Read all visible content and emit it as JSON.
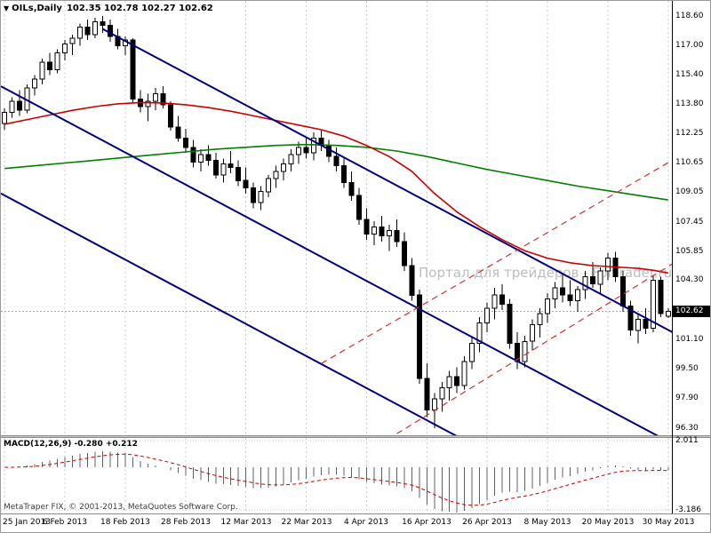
{
  "header": {
    "shift_marker": "▼",
    "symbol": "OILs,Daily",
    "ohlc": "102.35 102.78 102.27 102.62"
  },
  "watermark": "Портал для трейдеров - ForTrader.ru",
  "price_scale": {
    "current_price_label": "102.62"
  },
  "macd_panel": {
    "label": "MACD(12,26,9) -0.280 +0.212",
    "max_label": "2.011",
    "min_label": "-3.186"
  },
  "footer": "MetaTraper FIX, © 2001-2013, MetaQuotes Software Corp.",
  "colors": {
    "bull": "#ffffff",
    "bear": "#000000",
    "wick": "#000000",
    "ma_fast": "#cc0000",
    "ma_slow": "#008000",
    "trendline": "#000080",
    "channel_dashed": "#cc3333",
    "grid": "#cccccc",
    "price_line": "#aaaaaa",
    "price_box_bg": "#000000",
    "macd_histogram": "#606060",
    "macd_signal": "#cc0000"
  },
  "chart_data": {
    "type": "candlestick",
    "symbol": "OILs",
    "timeframe": "Daily",
    "title": "OILs,Daily",
    "ylim": [
      95.87,
      119.42
    ],
    "grid": "vertical-dashed",
    "last": {
      "open": 102.35,
      "high": 102.78,
      "low": 102.27,
      "close": 102.62
    },
    "price_ticks": [
      [
        "118.60",
        118.6
      ],
      [
        "117.00",
        117.0
      ],
      [
        "115.40",
        115.4
      ],
      [
        "113.80",
        113.8
      ],
      [
        "112.25",
        112.25
      ],
      [
        "110.65",
        110.65
      ],
      [
        "109.05",
        109.05
      ],
      [
        "107.45",
        107.45
      ],
      [
        "105.85",
        105.85
      ],
      [
        "104.30",
        104.3
      ],
      [
        "101.10",
        101.1
      ],
      [
        "99.50",
        99.5
      ],
      [
        "97.90",
        97.9
      ],
      [
        "96.30",
        96.3
      ]
    ],
    "x_ticks": [
      [
        "25 Jan 2013",
        0
      ],
      [
        "6 Feb 2013",
        8
      ],
      [
        "18 Feb 2013",
        16
      ],
      [
        "28 Feb 2013",
        24
      ],
      [
        "12 Mar 2013",
        32
      ],
      [
        "22 Mar 2013",
        40
      ],
      [
        "4 Apr 2013",
        48
      ],
      [
        "16 Apr 2013",
        56
      ],
      [
        "26 Apr 2013",
        64
      ],
      [
        "8 May 2013",
        72
      ],
      [
        "20 May 2013",
        80
      ],
      [
        "30 May 2013",
        88
      ]
    ],
    "candles": [
      [
        112.8,
        113.6,
        112.45,
        113.4
      ],
      [
        113.4,
        114.2,
        113.1,
        114.0
      ],
      [
        114.0,
        114.6,
        113.2,
        113.5
      ],
      [
        113.5,
        114.9,
        113.35,
        114.7
      ],
      [
        114.7,
        115.4,
        114.3,
        115.2
      ],
      [
        115.2,
        116.3,
        114.9,
        116.1
      ],
      [
        116.1,
        116.6,
        115.4,
        115.7
      ],
      [
        115.7,
        116.8,
        115.5,
        116.6
      ],
      [
        116.6,
        117.3,
        116.2,
        117.1
      ],
      [
        117.1,
        117.6,
        116.5,
        117.4
      ],
      [
        117.4,
        118.2,
        117.0,
        118.0
      ],
      [
        118.0,
        118.4,
        117.3,
        117.6
      ],
      [
        117.6,
        118.5,
        117.4,
        118.3
      ],
      [
        118.3,
        118.6,
        117.7,
        118.1
      ],
      [
        118.1,
        118.4,
        117.2,
        117.5
      ],
      [
        117.5,
        117.9,
        116.8,
        117.0
      ],
      [
        117.0,
        117.5,
        116.5,
        117.3
      ],
      [
        117.3,
        117.4,
        113.9,
        114.1
      ],
      [
        114.1,
        114.6,
        113.4,
        113.7
      ],
      [
        113.7,
        114.4,
        112.9,
        114.0
      ],
      [
        114.0,
        114.7,
        113.5,
        114.4
      ],
      [
        114.4,
        114.8,
        113.6,
        113.8
      ],
      [
        113.8,
        114.0,
        112.4,
        112.6
      ],
      [
        112.6,
        113.2,
        111.8,
        112.0
      ],
      [
        112.0,
        112.5,
        111.2,
        111.5
      ],
      [
        111.5,
        111.9,
        110.4,
        110.7
      ],
      [
        110.7,
        111.4,
        110.2,
        111.1
      ],
      [
        111.1,
        111.6,
        110.5,
        110.8
      ],
      [
        110.8,
        111.2,
        109.8,
        110.0
      ],
      [
        110.0,
        110.9,
        109.6,
        110.6
      ],
      [
        110.6,
        111.3,
        110.1,
        110.4
      ],
      [
        110.4,
        110.8,
        109.4,
        109.7
      ],
      [
        109.7,
        110.4,
        109.0,
        109.3
      ],
      [
        109.3,
        109.6,
        108.2,
        108.5
      ],
      [
        108.5,
        109.4,
        108.1,
        109.1
      ],
      [
        109.1,
        110.0,
        108.8,
        109.8
      ],
      [
        109.8,
        110.5,
        109.3,
        110.2
      ],
      [
        110.2,
        110.9,
        109.7,
        110.6
      ],
      [
        110.6,
        111.4,
        110.2,
        111.1
      ],
      [
        111.1,
        111.8,
        110.6,
        111.5
      ],
      [
        111.5,
        112.0,
        110.9,
        111.2
      ],
      [
        111.2,
        112.3,
        110.8,
        112.0
      ],
      [
        112.0,
        112.4,
        111.3,
        111.6
      ],
      [
        111.6,
        111.9,
        110.7,
        111.0
      ],
      [
        111.0,
        111.5,
        110.2,
        110.5
      ],
      [
        110.5,
        110.9,
        109.3,
        109.6
      ],
      [
        109.6,
        110.2,
        108.6,
        108.9
      ],
      [
        108.9,
        109.3,
        107.3,
        107.6
      ],
      [
        107.6,
        108.2,
        106.5,
        106.8
      ],
      [
        106.8,
        107.5,
        106.2,
        107.2
      ],
      [
        107.2,
        107.8,
        106.4,
        106.7
      ],
      [
        106.7,
        107.3,
        105.9,
        107.0
      ],
      [
        107.0,
        107.6,
        106.1,
        106.4
      ],
      [
        106.4,
        106.9,
        104.8,
        105.1
      ],
      [
        105.1,
        105.5,
        103.2,
        103.5
      ],
      [
        103.5,
        103.8,
        98.7,
        99.0
      ],
      [
        99.0,
        99.8,
        96.9,
        97.3
      ],
      [
        97.3,
        98.2,
        96.3,
        97.9
      ],
      [
        97.9,
        98.8,
        97.2,
        98.5
      ],
      [
        98.5,
        99.4,
        97.8,
        99.1
      ],
      [
        99.1,
        99.6,
        98.2,
        98.6
      ],
      [
        98.6,
        100.2,
        98.4,
        99.9
      ],
      [
        99.9,
        101.2,
        99.5,
        100.9
      ],
      [
        100.9,
        102.3,
        100.4,
        102.0
      ],
      [
        102.0,
        103.1,
        101.5,
        102.8
      ],
      [
        102.8,
        103.9,
        102.2,
        103.5
      ],
      [
        103.5,
        104.1,
        102.7,
        103.0
      ],
      [
        103.0,
        103.3,
        100.6,
        100.9
      ],
      [
        100.9,
        101.5,
        99.5,
        99.9
      ],
      [
        99.9,
        101.3,
        99.6,
        101.0
      ],
      [
        101.0,
        102.2,
        100.5,
        101.9
      ],
      [
        101.9,
        102.8,
        101.2,
        102.5
      ],
      [
        102.5,
        103.6,
        102.0,
        103.3
      ],
      [
        103.3,
        104.2,
        102.8,
        103.9
      ],
      [
        103.9,
        104.6,
        103.1,
        103.5
      ],
      [
        103.5,
        104.3,
        102.9,
        103.2
      ],
      [
        103.2,
        104.0,
        102.6,
        103.8
      ],
      [
        103.8,
        104.8,
        103.3,
        104.5
      ],
      [
        104.5,
        105.3,
        103.9,
        104.1
      ],
      [
        104.1,
        105.0,
        103.6,
        104.8
      ],
      [
        104.8,
        105.8,
        104.3,
        105.5
      ],
      [
        105.5,
        105.85,
        104.2,
        104.5
      ],
      [
        104.5,
        104.8,
        102.6,
        102.9
      ],
      [
        102.9,
        103.2,
        101.3,
        101.6
      ],
      [
        101.6,
        102.5,
        100.9,
        102.2
      ],
      [
        102.2,
        102.8,
        101.4,
        101.7
      ],
      [
        101.7,
        104.6,
        101.5,
        104.3
      ],
      [
        104.3,
        104.5,
        102.3,
        102.5
      ],
      [
        102.35,
        102.78,
        102.27,
        102.62
      ]
    ],
    "ma_fast_red": [
      [
        0,
        112.75
      ],
      [
        3,
        113.0
      ],
      [
        6,
        113.25
      ],
      [
        9,
        113.5
      ],
      [
        12,
        113.7
      ],
      [
        15,
        113.85
      ],
      [
        18,
        113.92
      ],
      [
        21,
        113.9
      ],
      [
        24,
        113.8
      ],
      [
        27,
        113.65
      ],
      [
        30,
        113.45
      ],
      [
        33,
        113.2
      ],
      [
        36,
        112.95
      ],
      [
        39,
        112.7
      ],
      [
        42,
        112.45
      ],
      [
        45,
        112.1
      ],
      [
        48,
        111.6
      ],
      [
        51,
        111.0
      ],
      [
        54,
        110.2
      ],
      [
        57,
        109.0
      ],
      [
        60,
        108.0
      ],
      [
        63,
        107.2
      ],
      [
        66,
        106.5
      ],
      [
        69,
        105.9
      ],
      [
        72,
        105.5
      ],
      [
        75,
        105.25
      ],
      [
        78,
        105.1
      ],
      [
        80,
        105.05
      ],
      [
        82,
        105.0
      ],
      [
        84,
        104.95
      ],
      [
        86,
        104.85
      ],
      [
        88,
        104.7
      ]
    ],
    "ma_slow_green": [
      [
        0,
        110.35
      ],
      [
        4,
        110.5
      ],
      [
        8,
        110.65
      ],
      [
        12,
        110.8
      ],
      [
        16,
        110.95
      ],
      [
        20,
        111.1
      ],
      [
        24,
        111.25
      ],
      [
        28,
        111.4
      ],
      [
        32,
        111.5
      ],
      [
        36,
        111.6
      ],
      [
        40,
        111.65
      ],
      [
        44,
        111.6
      ],
      [
        48,
        111.5
      ],
      [
        52,
        111.3
      ],
      [
        56,
        111.0
      ],
      [
        60,
        110.65
      ],
      [
        64,
        110.3
      ],
      [
        68,
        110.0
      ],
      [
        72,
        109.7
      ],
      [
        76,
        109.4
      ],
      [
        80,
        109.15
      ],
      [
        84,
        108.9
      ],
      [
        88,
        108.65
      ]
    ],
    "trendlines": [
      {
        "name": "descending-trendline-upper",
        "style": "solid",
        "color": "#000080",
        "from": [
          13,
          117.9
        ],
        "to": [
          89,
          101.4
        ]
      },
      {
        "name": "descending-trendline-middle",
        "style": "solid",
        "color": "#000080",
        "from": [
          -0.5,
          114.8
        ],
        "to": [
          89,
          95.37
        ]
      },
      {
        "name": "descending-trendline-lower",
        "style": "solid",
        "color": "#000080",
        "from": [
          -0.5,
          109.0
        ],
        "to": [
          89,
          89.57
        ]
      },
      {
        "name": "ascending-channel-upper",
        "style": "dashed",
        "color": "#cc3333",
        "from": [
          42,
          99.8
        ],
        "to": [
          89,
          110.9
        ]
      },
      {
        "name": "ascending-channel-lower",
        "style": "dashed",
        "color": "#cc3333",
        "from": [
          52,
          96.0
        ],
        "to": [
          89,
          105.3
        ]
      }
    ],
    "indicator": {
      "type": "MACD",
      "fast": 12,
      "slow": 26,
      "signal": 9,
      "value": -0.28,
      "signal_value": 0.212,
      "scale_max": 2.011,
      "scale_min": -3.186,
      "view_max": 2.2,
      "view_min": -3.45
    }
  }
}
